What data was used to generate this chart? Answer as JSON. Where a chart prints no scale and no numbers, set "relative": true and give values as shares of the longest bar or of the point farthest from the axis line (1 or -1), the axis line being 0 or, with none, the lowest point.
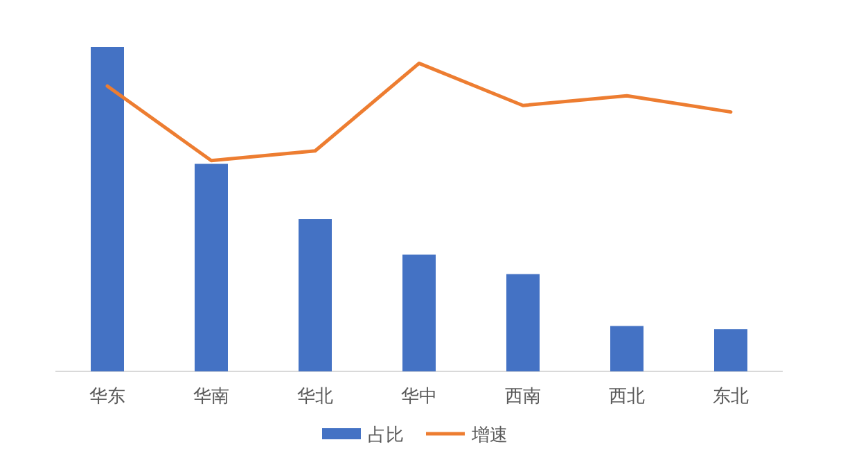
{
  "chart_data": {
    "type": "bar",
    "relative": true,
    "legend": "bottom",
    "categories": [
      "华东",
      "华南",
      "华北",
      "华中",
      "西南",
      "西北",
      "东北"
    ],
    "series": [
      {
        "name": "占比",
        "color": "#4472c4",
        "values": [
          1,
          0.64,
          0.47,
          0.36,
          0.3,
          0.14,
          0.13
        ]
      },
      {
        "name": "增速",
        "type": "line",
        "color": "#ed7d31",
        "values": [
          0.88,
          0.65,
          0.68,
          0.95,
          0.82,
          0.85,
          0.8
        ]
      }
    ]
  }
}
